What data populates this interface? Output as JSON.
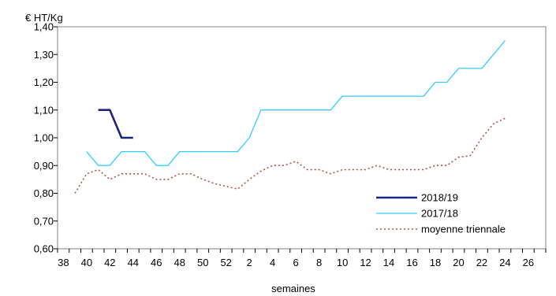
{
  "chart_data": {
    "type": "line",
    "title": "",
    "ylabel": "€  HT/Kg",
    "xlabel": "semaines",
    "ylim": [
      0.6,
      1.4
    ],
    "yticks": [
      "0,60",
      "0,70",
      "0,80",
      "0,90",
      "1,00",
      "1,10",
      "1,20",
      "1,30",
      "1,40"
    ],
    "xticks": [
      "38",
      "40",
      "42",
      "44",
      "46",
      "48",
      "50",
      "52",
      "2",
      "4",
      "6",
      "8",
      "10",
      "12",
      "14",
      "16",
      "18",
      "20",
      "22",
      "24",
      "26"
    ],
    "week_sequence": [
      38,
      39,
      40,
      41,
      42,
      43,
      44,
      45,
      46,
      47,
      48,
      49,
      50,
      51,
      52,
      1,
      2,
      3,
      4,
      5,
      6,
      7,
      8,
      9,
      10,
      11,
      12,
      13,
      14,
      15,
      16,
      17,
      18,
      19,
      20,
      21,
      22,
      23,
      24,
      25,
      26,
      27
    ],
    "grid": false,
    "legend_position": "bottom-right",
    "series": [
      {
        "name": "2018/19",
        "color": "#1a237e",
        "style": "solid-thick",
        "points": [
          [
            41,
            1.1
          ],
          [
            42,
            1.1
          ],
          [
            43,
            1.0
          ],
          [
            44,
            1.0
          ]
        ]
      },
      {
        "name": "2017/18",
        "color": "#33ccff",
        "style": "solid",
        "points": [
          [
            40,
            0.95
          ],
          [
            41,
            0.9
          ],
          [
            42,
            0.9
          ],
          [
            43,
            0.95
          ],
          [
            44,
            0.95
          ],
          [
            45,
            0.95
          ],
          [
            46,
            0.9
          ],
          [
            47,
            0.9
          ],
          [
            48,
            0.95
          ],
          [
            49,
            0.95
          ],
          [
            50,
            0.95
          ],
          [
            51,
            0.95
          ],
          [
            52,
            0.95
          ],
          [
            1,
            0.95
          ],
          [
            2,
            1.0
          ],
          [
            3,
            1.1
          ],
          [
            4,
            1.1
          ],
          [
            5,
            1.1
          ],
          [
            6,
            1.1
          ],
          [
            7,
            1.1
          ],
          [
            8,
            1.1
          ],
          [
            9,
            1.1
          ],
          [
            10,
            1.15
          ],
          [
            11,
            1.15
          ],
          [
            12,
            1.15
          ],
          [
            13,
            1.15
          ],
          [
            14,
            1.15
          ],
          [
            15,
            1.15
          ],
          [
            16,
            1.15
          ],
          [
            17,
            1.15
          ],
          [
            18,
            1.2
          ],
          [
            19,
            1.2
          ],
          [
            20,
            1.25
          ],
          [
            21,
            1.25
          ],
          [
            22,
            1.25
          ],
          [
            23,
            1.3
          ],
          [
            24,
            1.35
          ]
        ]
      },
      {
        "name": "moyenne  triennale",
        "color": "#b5533c",
        "style": "dotted",
        "points": [
          [
            39,
            0.8
          ],
          [
            40,
            0.87
          ],
          [
            41,
            0.885
          ],
          [
            42,
            0.85
          ],
          [
            43,
            0.87
          ],
          [
            44,
            0.87
          ],
          [
            45,
            0.87
          ],
          [
            46,
            0.85
          ],
          [
            47,
            0.85
          ],
          [
            48,
            0.87
          ],
          [
            49,
            0.87
          ],
          [
            50,
            0.85
          ],
          [
            51,
            0.835
          ],
          [
            52,
            0.825
          ],
          [
            1,
            0.815
          ],
          [
            2,
            0.85
          ],
          [
            3,
            0.88
          ],
          [
            4,
            0.9
          ],
          [
            5,
            0.9
          ],
          [
            6,
            0.915
          ],
          [
            7,
            0.885
          ],
          [
            8,
            0.885
          ],
          [
            9,
            0.87
          ],
          [
            10,
            0.885
          ],
          [
            11,
            0.885
          ],
          [
            12,
            0.885
          ],
          [
            13,
            0.9
          ],
          [
            14,
            0.885
          ],
          [
            15,
            0.885
          ],
          [
            16,
            0.885
          ],
          [
            17,
            0.885
          ],
          [
            18,
            0.9
          ],
          [
            19,
            0.9
          ],
          [
            20,
            0.93
          ],
          [
            21,
            0.935
          ],
          [
            22,
            1.0
          ],
          [
            23,
            1.05
          ],
          [
            24,
            1.07
          ]
        ]
      }
    ]
  }
}
